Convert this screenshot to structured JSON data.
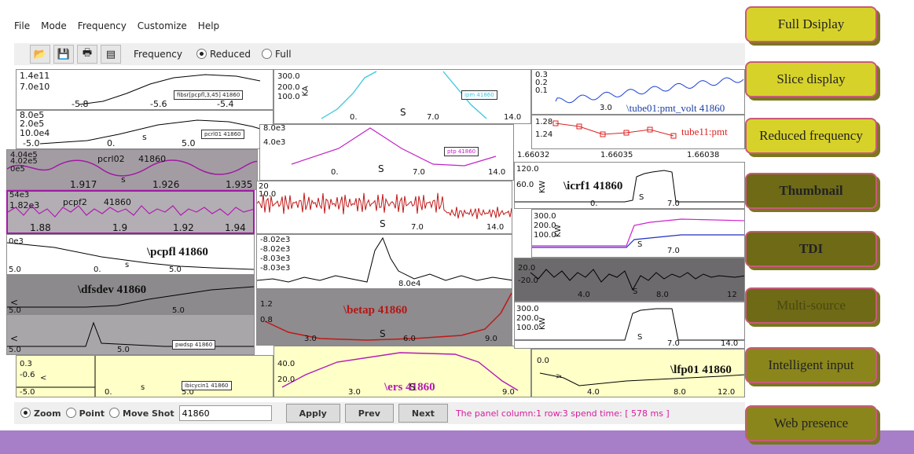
{
  "menu": [
    "File",
    "Mode",
    "Frequency",
    "Customize",
    "Help"
  ],
  "toolbar": {
    "label": "Frequency",
    "reduced": "Reduced",
    "full": "Full"
  },
  "side_buttons": [
    "Full Dsiplay",
    "Slice display",
    "Reduced frequency",
    "Thumbnail",
    "TDI",
    "Multi-source",
    "Intelligent input",
    "Web presence"
  ],
  "panels": [
    {
      "ticks": [
        "1.4e11",
        "7.0e10",
        "-5.8",
        "-5.6",
        "-5.4"
      ],
      "legend": "fibsr[pcpfl,3,45] 41860"
    },
    {
      "ticks": [
        "8.0e5",
        "2.0e5",
        "10.0e4",
        "-5.0",
        "0.",
        "s",
        "5.0"
      ],
      "legend": "pcrl01 41860"
    },
    {
      "ticks": [
        "4.04e5",
        "4.02e5",
        "0e5",
        "1.917",
        "s",
        "1.926",
        "1.935"
      ],
      "title": "pcrl02     41860"
    },
    {
      "ticks": [
        "54e3",
        "1.82e3",
        "1.88",
        "1.9",
        "1.92",
        "1.94"
      ],
      "title": "pcpf2      41860"
    },
    {
      "ticks": [
        "0e3",
        "5.0",
        "0.",
        "s",
        "5.0"
      ],
      "title": "\\pcpfl 41860"
    },
    {
      "ticks": [
        "5.0",
        "5.0"
      ],
      "title": "\\dfsdev 41860"
    },
    {
      "ticks": [
        "5.0",
        "5.0"
      ],
      "legend": "pwdsp 41860"
    },
    {
      "ticks": [
        "0.3",
        "-0.6",
        "-5.0",
        "0.",
        "s",
        "5.0"
      ],
      "legend": "ibicycin1 41860"
    },
    {
      "ticks": [
        "300.0",
        "200.0",
        "100.0",
        "0.",
        "S",
        "7.0",
        "14.0"
      ],
      "legend": "ipm 41860",
      "unit": "KA"
    },
    {
      "ticks": [
        "8.0e3",
        "4.0e3",
        "0.",
        "S",
        "7.0",
        "14.0"
      ],
      "legend": "ptp 41860"
    },
    {
      "ticks": [
        "20",
        "10.0",
        "S",
        "7.0",
        "14.0"
      ]
    },
    {
      "ticks": [
        "-8.02e3",
        "-8.02e3",
        "-8.03e3",
        "-8.03e3",
        "8.0e4"
      ]
    },
    {
      "ticks": [
        "1.2",
        "0.8",
        "3.0",
        "S",
        "6.0",
        "9.0"
      ],
      "title": "\\betap 41860"
    },
    {
      "ticks": [
        "40.0",
        "20.0",
        "3.0",
        "S",
        "9.0"
      ],
      "title": "\\ers 41860"
    },
    {
      "ticks": [
        "0.3",
        "0.2",
        "0.1",
        "3.0"
      ],
      "title": "\\tube01:pmt_volt 41860"
    },
    {
      "ticks": [
        "1.28",
        "1.24"
      ],
      "title": "tube11:pmt"
    },
    {
      "ticks": [
        "1.66032",
        "1.66035",
        "1.66038"
      ]
    },
    {
      "ticks": [
        "120.0",
        "60.0",
        "0.",
        "S",
        "7.0"
      ],
      "title": "\\icrf1 41860",
      "unit": "KW"
    },
    {
      "ticks": [
        "300.0",
        "200.0",
        "100.0",
        "S",
        "7.0"
      ],
      "unit": "KW"
    },
    {
      "ticks": [
        "20.0",
        "-20.0",
        "4.0",
        "S",
        "8.0",
        "12"
      ]
    },
    {
      "ticks": [
        "300.0",
        "200.0",
        "100.0",
        "S",
        "7.0",
        "14.0"
      ],
      "unit": "KW"
    },
    {
      "ticks": [
        "0.0",
        "4.0",
        "8.0",
        "12.0"
      ],
      "title": "\\lfp01 41860"
    }
  ],
  "bottom": {
    "zoom": "Zoom",
    "point": "Point",
    "move": "Move Shot",
    "shot": "41860",
    "apply": "Apply",
    "prev": "Prev",
    "next": "Next",
    "status": "The panel column:1 row:3 spend time: [ 578 ms ]"
  },
  "colors": {
    "purple": "#a77fc8",
    "button": "#d7d22a",
    "button_dark": "#6e6a15",
    "status": "#d81c9c"
  }
}
